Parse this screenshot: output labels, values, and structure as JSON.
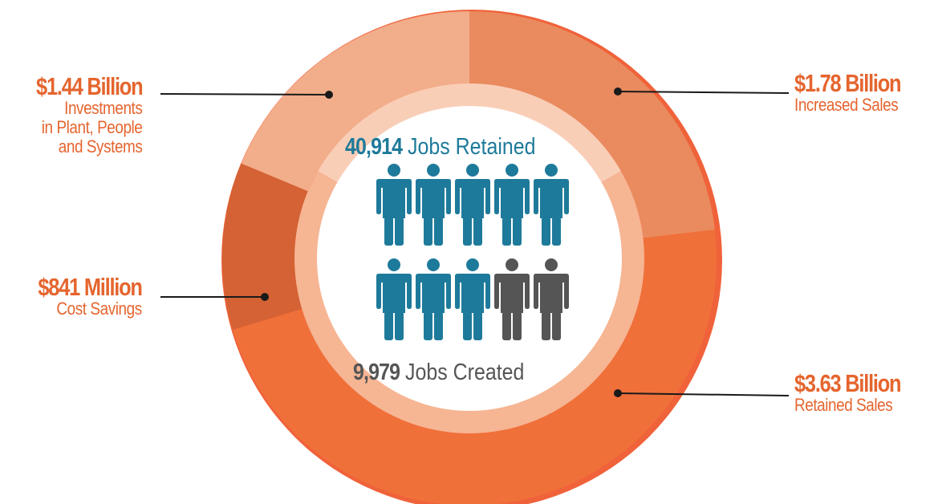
{
  "chart_data": {
    "type": "pie",
    "variant": "donut",
    "segments": [
      {
        "value_label": "$1.78 Billion",
        "description": "Increased Sales",
        "value": 1.78,
        "unit": "Billion",
        "color": "#E98B5E"
      },
      {
        "value_label": "$3.63 Billion",
        "description": "Retained Sales",
        "value": 3.63,
        "unit": "Billion",
        "color": "#F0703A"
      },
      {
        "value_label": "$841 Million",
        "description": "Cost Savings",
        "value": 0.841,
        "unit": "Billion",
        "color": "#D46234"
      },
      {
        "value_label": "$1.44 Billion",
        "description": "Investments\nin Plant, People\nand Systems",
        "value": 1.44,
        "unit": "Billion",
        "color": "#F2AD8A"
      }
    ],
    "center": {
      "jobs_retained": {
        "number": "40,914",
        "text": "Jobs Retained",
        "color": "#1E7A9A"
      },
      "jobs_created": {
        "number": "9,979",
        "text": "Jobs Created",
        "color": "#555555"
      },
      "people_icons": {
        "total": 10,
        "highlighted": 8,
        "highlight_color": "#1E7A9A",
        "other_color": "#555555"
      }
    }
  },
  "labels": {
    "top_left": {
      "value": "$1.44 Billion",
      "desc": "Investments\nin Plant, People\nand Systems"
    },
    "mid_left": {
      "value": "$841 Million",
      "desc": "Cost Savings"
    },
    "top_right": {
      "value": "$1.78 Billion",
      "desc": "Increased Sales"
    },
    "bottom_right": {
      "value": "$3.63 Billion",
      "desc": "Retained Sales"
    }
  },
  "colors": {
    "label_orange": "#E5652E",
    "outer_ring_rim": "#F0623A",
    "inner_ring": "#F6B593",
    "inner_ring_light": "#FBD9C6"
  }
}
